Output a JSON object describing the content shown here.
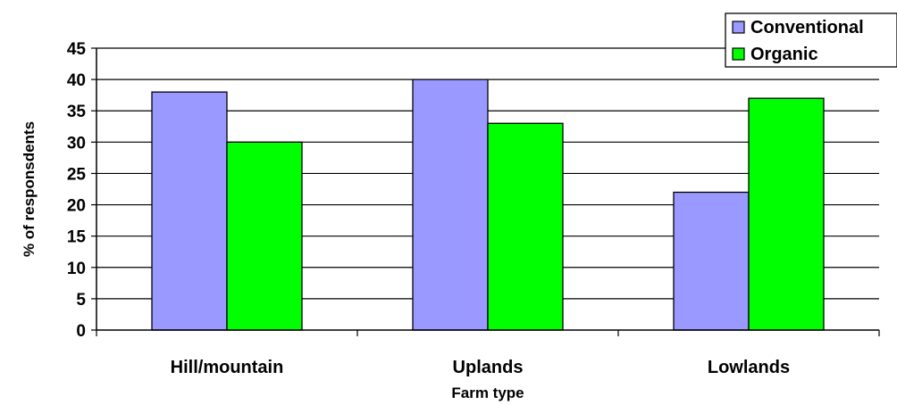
{
  "chart_data": {
    "type": "bar",
    "title": "",
    "xlabel": "Farm type",
    "ylabel": "% of responsdents",
    "categories": [
      "Hill/mountain",
      "Uplands",
      "Lowlands"
    ],
    "series": [
      {
        "name": "Conventional",
        "values": [
          38,
          40,
          22
        ],
        "color": "#9999FF"
      },
      {
        "name": "Organic",
        "values": [
          30,
          33,
          37
        ],
        "color": "#00FF00"
      }
    ],
    "ylim": [
      0,
      45
    ],
    "yticks": [
      0,
      5,
      10,
      15,
      20,
      25,
      30,
      35,
      40,
      45
    ],
    "grid": true,
    "legend_position": "top-right"
  }
}
